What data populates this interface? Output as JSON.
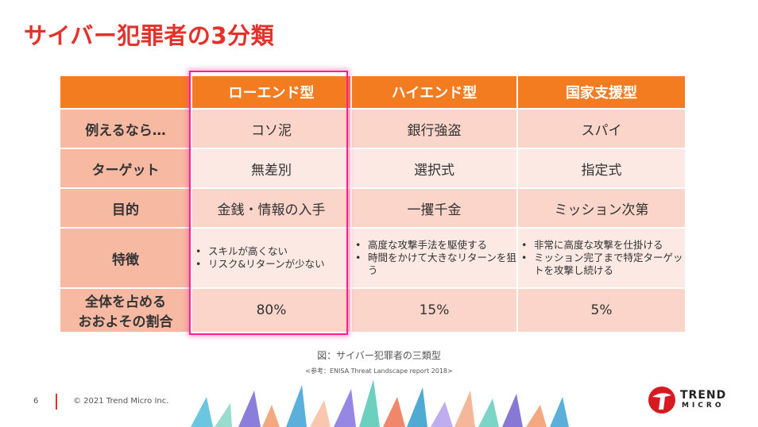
{
  "slide": {
    "title": "サイバー犯罪者の3分類",
    "caption": "図：サイバー犯罪者の三類型",
    "reference": "<参考：ENISA Threat Landscape report 2018>",
    "page_number": "6",
    "copyright": "© 2021 Trend Micro Inc."
  },
  "logo": {
    "line1": "TREND",
    "line2": "MICRO"
  },
  "table": {
    "columns": [
      "ローエンド型",
      "ハイエンド型",
      "国家支援型"
    ],
    "rows": [
      {
        "label": "例えるなら…",
        "values": [
          "コソ泥",
          "銀行強盗",
          "スパイ"
        ]
      },
      {
        "label": "ターゲット",
        "values": [
          "無差別",
          "選択式",
          "指定式"
        ]
      },
      {
        "label": "目的",
        "values": [
          "金銭・情報の入手",
          "一攫千金",
          "ミッション次第"
        ]
      },
      {
        "label": "特徴",
        "bullets": [
          [
            "スキルが高くない",
            "リスク&リターンが少ない"
          ],
          [
            "高度な攻撃手法を駆使する",
            "時間をかけて大きなリターンを狙う"
          ],
          [
            "非常に高度な攻撃を仕掛ける",
            "ミッション完了まで特定ターゲットを攻撃し続ける"
          ]
        ]
      },
      {
        "label_line1": "全体を占める",
        "label_line2": "おおよその割合",
        "values": [
          "80%",
          "15%",
          "5%"
        ]
      }
    ]
  },
  "colors": {
    "accent": "#e3322b",
    "header_orange": "#f47c20",
    "percent_red": "#c0171c",
    "highlight": "#ff1f8f"
  }
}
